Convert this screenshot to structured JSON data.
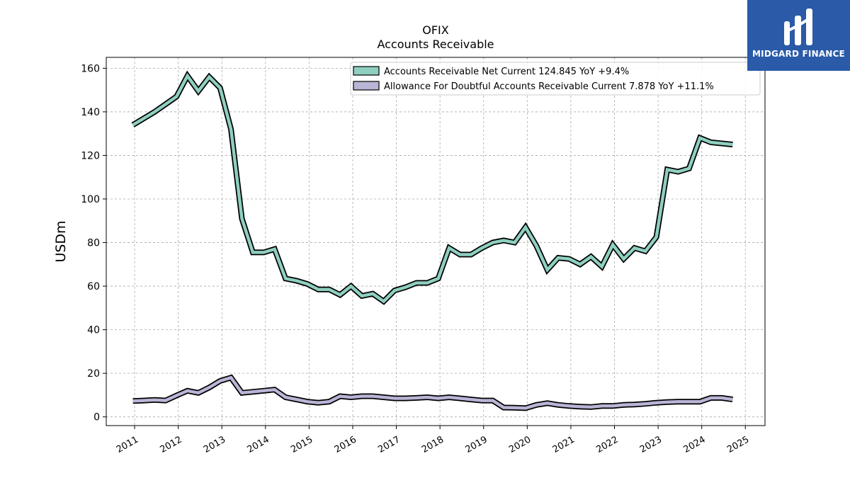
{
  "chart_data": {
    "type": "line",
    "title": "OFIX",
    "subtitle": "Accounts Receivable",
    "ylabel": "USDm",
    "xlabel": "",
    "ylim": [
      -4,
      165
    ],
    "xlim": [
      2010.35,
      2025.45
    ],
    "yticks": [
      0,
      20,
      40,
      60,
      80,
      100,
      120,
      140,
      160
    ],
    "xticks": [
      2011,
      2012,
      2013,
      2014,
      2015,
      2016,
      2017,
      2018,
      2019,
      2020,
      2021,
      2022,
      2023,
      2024,
      2025
    ],
    "xtick_labels": [
      "2011",
      "2012",
      "2013",
      "2014",
      "2015",
      "2016",
      "2017",
      "2018",
      "2019",
      "2020",
      "2021",
      "2022",
      "2023",
      "2024",
      "2025"
    ],
    "grid": true,
    "legend_position": "top-right",
    "series": [
      {
        "name": "Accounts Receivable Net Current",
        "legend_label": "Accounts Receivable Net Current  124.845 YoY +9.4%",
        "color": "#8ecfc0",
        "points": [
          [
            2010.96,
            134
          ],
          [
            2011.21,
            137
          ],
          [
            2011.46,
            140
          ],
          [
            2011.71,
            143.5
          ],
          [
            2011.96,
            147
          ],
          [
            2012.21,
            156.5
          ],
          [
            2012.46,
            149.5
          ],
          [
            2012.71,
            156
          ],
          [
            2012.96,
            151
          ],
          [
            2013.21,
            132
          ],
          [
            2013.46,
            91
          ],
          [
            2013.71,
            75.5
          ],
          [
            2013.96,
            75.5
          ],
          [
            2014.21,
            77
          ],
          [
            2014.46,
            63.5
          ],
          [
            2014.71,
            62.5
          ],
          [
            2014.96,
            61
          ],
          [
            2015.21,
            58.5
          ],
          [
            2015.46,
            58.5
          ],
          [
            2015.71,
            56
          ],
          [
            2015.96,
            60
          ],
          [
            2016.21,
            55.5
          ],
          [
            2016.46,
            56.5
          ],
          [
            2016.71,
            53
          ],
          [
            2016.96,
            58
          ],
          [
            2017.21,
            59.5
          ],
          [
            2017.46,
            61.5
          ],
          [
            2017.71,
            61.5
          ],
          [
            2017.96,
            63.5
          ],
          [
            2018.21,
            77.5
          ],
          [
            2018.46,
            74.5
          ],
          [
            2018.71,
            74.5
          ],
          [
            2018.96,
            77.5
          ],
          [
            2019.21,
            80
          ],
          [
            2019.46,
            81
          ],
          [
            2019.71,
            80
          ],
          [
            2019.96,
            87
          ],
          [
            2020.21,
            78.5
          ],
          [
            2020.46,
            67.5
          ],
          [
            2020.71,
            73
          ],
          [
            2020.96,
            72.5
          ],
          [
            2021.21,
            70
          ],
          [
            2021.46,
            73.5
          ],
          [
            2021.71,
            69
          ],
          [
            2021.96,
            79
          ],
          [
            2022.21,
            72.5
          ],
          [
            2022.46,
            77.5
          ],
          [
            2022.71,
            76
          ],
          [
            2022.96,
            82.5
          ],
          [
            2023.21,
            113.5
          ],
          [
            2023.46,
            112.5
          ],
          [
            2023.71,
            114
          ],
          [
            2023.96,
            128
          ],
          [
            2024.21,
            126
          ],
          [
            2024.46,
            125.5
          ],
          [
            2024.71,
            125
          ]
        ]
      },
      {
        "name": "Allowance For Doubtful Accounts Receivable Current",
        "legend_label": "Allowance For Doubtful Accounts Receivable Current  7.878 YoY +11.1%",
        "color": "#b9b5d6",
        "points": [
          [
            2010.96,
            7.3
          ],
          [
            2011.21,
            7.5
          ],
          [
            2011.46,
            7.8
          ],
          [
            2011.71,
            7.5
          ],
          [
            2011.96,
            9.8
          ],
          [
            2012.21,
            12
          ],
          [
            2012.46,
            11
          ],
          [
            2012.71,
            13.5
          ],
          [
            2012.96,
            16.5
          ],
          [
            2013.21,
            18
          ],
          [
            2013.46,
            11
          ],
          [
            2013.71,
            11.5
          ],
          [
            2013.96,
            12
          ],
          [
            2014.21,
            12.5
          ],
          [
            2014.46,
            9
          ],
          [
            2014.71,
            8
          ],
          [
            2014.96,
            7
          ],
          [
            2015.21,
            6.5
          ],
          [
            2015.46,
            7
          ],
          [
            2015.71,
            9.5
          ],
          [
            2015.96,
            9
          ],
          [
            2016.21,
            9.5
          ],
          [
            2016.46,
            9.5
          ],
          [
            2016.71,
            9
          ],
          [
            2016.96,
            8.5
          ],
          [
            2017.21,
            8.5
          ],
          [
            2017.46,
            8.7
          ],
          [
            2017.71,
            9
          ],
          [
            2017.96,
            8.5
          ],
          [
            2018.21,
            9
          ],
          [
            2018.46,
            8.5
          ],
          [
            2018.71,
            8
          ],
          [
            2018.96,
            7.5
          ],
          [
            2019.21,
            7.5
          ],
          [
            2019.46,
            4.3
          ],
          [
            2019.71,
            4.2
          ],
          [
            2019.96,
            4
          ],
          [
            2020.21,
            5.5
          ],
          [
            2020.46,
            6.3
          ],
          [
            2020.71,
            5.5
          ],
          [
            2020.96,
            5
          ],
          [
            2021.21,
            4.7
          ],
          [
            2021.46,
            4.5
          ],
          [
            2021.71,
            5
          ],
          [
            2021.96,
            5
          ],
          [
            2022.21,
            5.5
          ],
          [
            2022.46,
            5.7
          ],
          [
            2022.71,
            6
          ],
          [
            2022.96,
            6.5
          ],
          [
            2023.21,
            6.8
          ],
          [
            2023.46,
            7
          ],
          [
            2023.71,
            7
          ],
          [
            2023.96,
            7
          ],
          [
            2024.21,
            8.7
          ],
          [
            2024.46,
            8.7
          ],
          [
            2024.71,
            8
          ]
        ]
      }
    ]
  },
  "logo": {
    "text": "MIDGARD FINANCE",
    "color": "#2a5aa8"
  }
}
